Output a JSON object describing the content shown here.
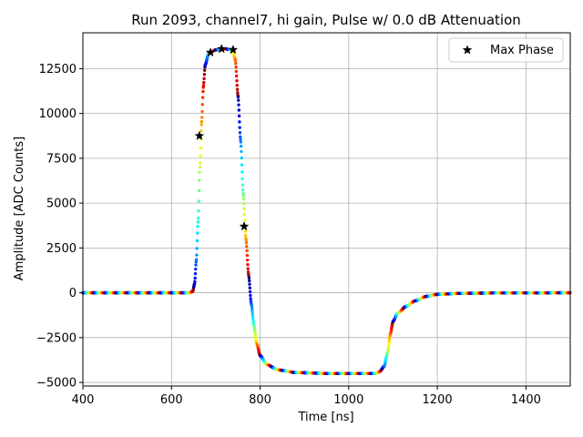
{
  "chart_data": {
    "type": "scatter",
    "title": "Run 2093, channel7, hi gain, Pulse w/ 0.0 dB Attenuation",
    "xlabel": "Time [ns]",
    "ylabel": "Amplitude [ADC Counts]",
    "xlim": [
      400,
      1500
    ],
    "ylim": [
      -5200,
      14500
    ],
    "xticks": [
      400,
      600,
      800,
      1000,
      1200,
      1400
    ],
    "yticks": [
      -5000,
      -2500,
      0,
      2500,
      5000,
      7500,
      10000,
      12500
    ],
    "xtick_labels": [
      "400",
      "600",
      "800",
      "1000",
      "1200",
      "1400"
    ],
    "ytick_labels": [
      "−5000",
      "−2500",
      "0",
      "2500",
      "5000",
      "7500",
      "10000",
      "12500"
    ],
    "grid": true,
    "legend": {
      "placement": "top-right",
      "entries": [
        {
          "label": "Max Phase",
          "marker": "star",
          "color": "#000000"
        }
      ]
    },
    "colormap": "jet",
    "waveform": {
      "description_source": "pulse shape",
      "knots": [
        [
          400,
          0
        ],
        [
          640,
          0
        ],
        [
          648,
          80
        ],
        [
          652,
          500
        ],
        [
          656,
          1800
        ],
        [
          660,
          4000
        ],
        [
          664,
          7000
        ],
        [
          668,
          9500
        ],
        [
          672,
          11500
        ],
        [
          676,
          12700
        ],
        [
          684,
          13350
        ],
        [
          700,
          13550
        ],
        [
          720,
          13600
        ],
        [
          738,
          13550
        ],
        [
          744,
          13000
        ],
        [
          750,
          11000
        ],
        [
          756,
          8500
        ],
        [
          762,
          5500
        ],
        [
          768,
          3000
        ],
        [
          774,
          1000
        ],
        [
          780,
          -600
        ],
        [
          786,
          -1800
        ],
        [
          792,
          -2800
        ],
        [
          800,
          -3500
        ],
        [
          815,
          -4000
        ],
        [
          840,
          -4300
        ],
        [
          880,
          -4450
        ],
        [
          950,
          -4500
        ],
        [
          1060,
          -4500
        ],
        [
          1070,
          -4400
        ],
        [
          1080,
          -4100
        ],
        [
          1088,
          -3300
        ],
        [
          1094,
          -2300
        ],
        [
          1100,
          -1600
        ],
        [
          1110,
          -1150
        ],
        [
          1130,
          -750
        ],
        [
          1150,
          -450
        ],
        [
          1175,
          -200
        ],
        [
          1200,
          -90
        ],
        [
          1250,
          -30
        ],
        [
          1350,
          -10
        ],
        [
          1500,
          0
        ]
      ]
    },
    "max_phase_points": [
      {
        "x": 663,
        "y": 8750
      },
      {
        "x": 688,
        "y": 13400
      },
      {
        "x": 713,
        "y": 13600
      },
      {
        "x": 739,
        "y": 13550
      },
      {
        "x": 764,
        "y": 3700
      }
    ]
  }
}
